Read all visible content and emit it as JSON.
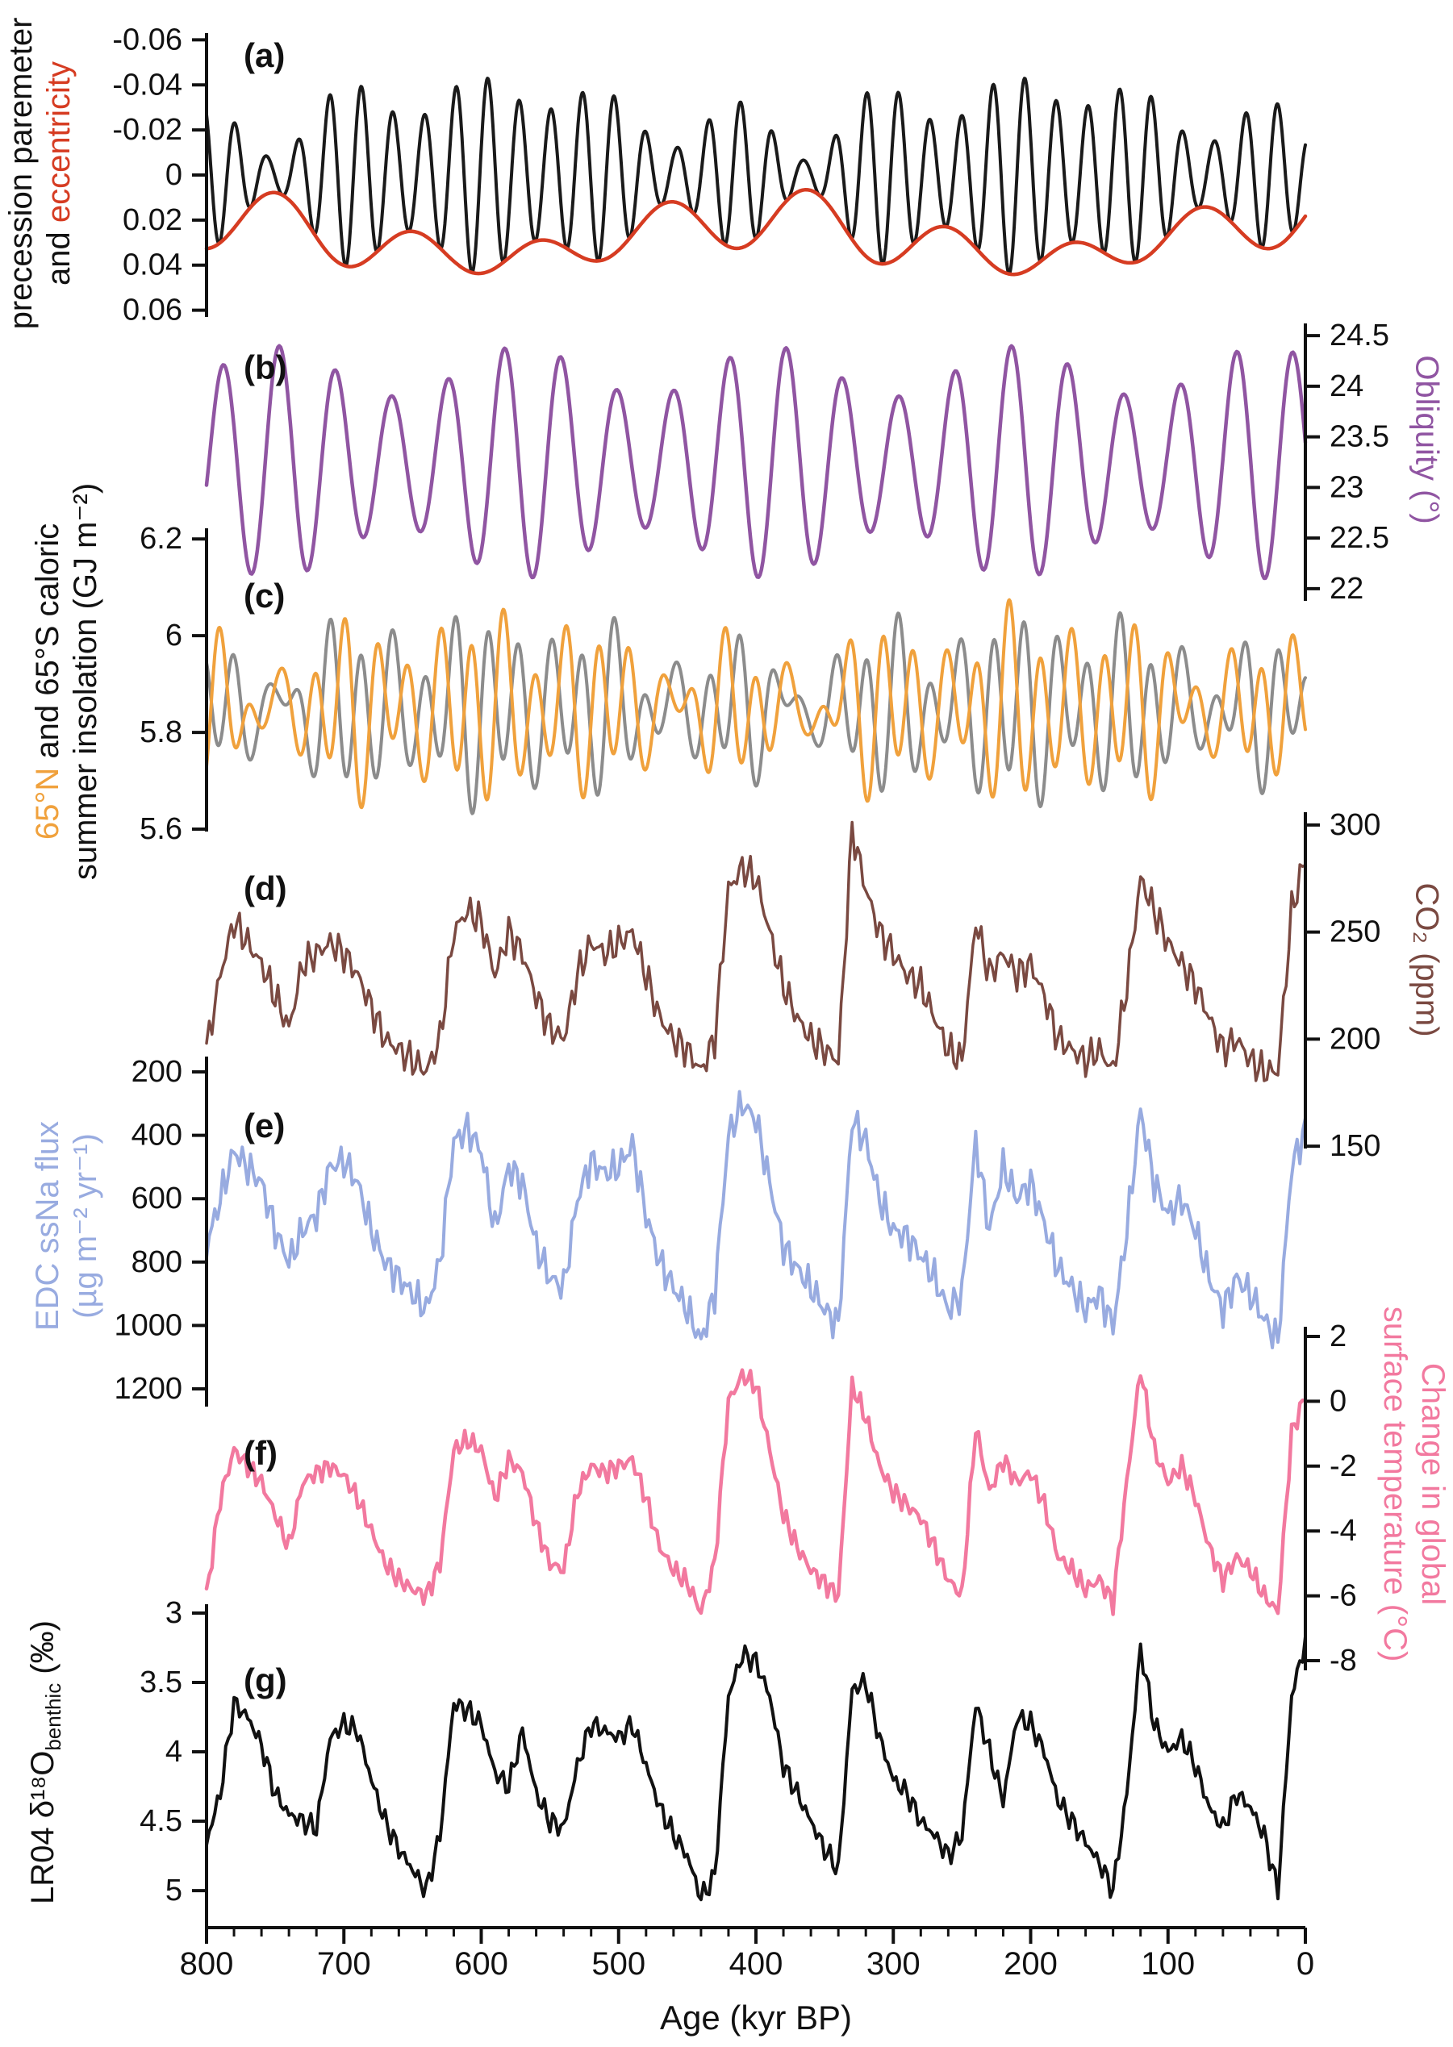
{
  "figure": {
    "description": "Seven stacked paleoclimate time series panels over the last 800 kyr"
  },
  "chart_data": {
    "type": "line",
    "x_axis": {
      "title": "Age (kyr BP)",
      "t_left": 800,
      "t_right": 0,
      "x_left": 256,
      "x_right": 1618,
      "y": 2390,
      "minor_step": 20,
      "ticks": [
        {
          "v": 800,
          "t": "800"
        },
        {
          "v": 700,
          "t": "700"
        },
        {
          "v": 600,
          "t": "600"
        },
        {
          "v": 500,
          "t": "500"
        },
        {
          "v": 400,
          "t": "400"
        },
        {
          "v": 300,
          "t": "300"
        },
        {
          "v": 200,
          "t": "200"
        },
        {
          "v": 100,
          "t": "100"
        },
        {
          "v": 0,
          "t": "0"
        }
      ]
    },
    "colors": {
      "black": "#111111",
      "eccentricity": "#d63c22",
      "obliquity": "#9055a2",
      "n65": "#f0a13c",
      "s65": "#8c8c8c",
      "co2": "#7a4941",
      "ssna": "#98abe0",
      "temp": "#f2799f"
    },
    "labels": {
      "a": {
        "line1": "precession paremeter",
        "line2_prefix": "and ",
        "line2_accent": "eccentricity"
      },
      "b": {
        "text": "Obliquity (°)"
      },
      "c": {
        "accent": "65°N",
        "line1_rest": " and 65°S caloric",
        "line2": "summer insolation (GJ m⁻²)"
      },
      "d": {
        "text": "CO₂ (ppm)"
      },
      "e": {
        "line1": "EDC ssNa flux",
        "line2": "(µg m⁻² yr⁻¹)"
      },
      "f": {
        "line1": "Change in global",
        "line2": "surface temperature (°C)"
      },
      "g": {
        "prefix": "LR04 δ¹⁸O",
        "sub": "benthic",
        "suffix": " (‰)"
      }
    },
    "eccentricity_model": {
      "offset": 0.028,
      "components": [
        {
          "amp": -0.009,
          "period": 400,
          "phase": 0
        },
        {
          "amp": 0.01,
          "period": 97,
          "phase": 120
        },
        {
          "amp": 0.004,
          "period": 128,
          "phase": 40
        }
      ]
    },
    "panels": [
      {
        "id": "a",
        "letter": "(a)",
        "side": "left",
        "y_top": 41,
        "y_bottom": 393,
        "v_top": -0.063,
        "v_bottom": 0.063,
        "ticks": [
          {
            "v": -0.06,
            "t": "-0.06"
          },
          {
            "v": -0.04,
            "t": "-0.04"
          },
          {
            "v": -0.02,
            "t": "-0.02"
          },
          {
            "v": 0,
            "t": "0"
          },
          {
            "v": 0.02,
            "t": "0.02"
          },
          {
            "v": 0.04,
            "t": "0.04"
          },
          {
            "v": 0.06,
            "t": "0.06"
          }
        ],
        "series": [
          {
            "name": "precession-parameter",
            "color": "#1a1a1a",
            "width": 4,
            "gen": {
              "type": "precession",
              "carrier_period": 23,
              "carrier_phase": 3,
              "step": 0.5
            }
          },
          {
            "name": "eccentricity",
            "color": "#d63c22",
            "width": 4.5,
            "gen": {
              "type": "eccentricity",
              "step": 2
            }
          }
        ]
      },
      {
        "id": "b",
        "letter": "(b)",
        "side": "right",
        "y_top": 401,
        "y_bottom": 745,
        "v_top": 24.62,
        "v_bottom": 21.88,
        "ticks": [
          {
            "v": 24.5,
            "t": "24.5"
          },
          {
            "v": 24,
            "t": "24"
          },
          {
            "v": 23.5,
            "t": "23.5"
          },
          {
            "v": 23,
            "t": "23"
          },
          {
            "v": 22.5,
            "t": "22.5"
          },
          {
            "v": 22,
            "t": "22"
          }
        ],
        "series": [
          {
            "name": "obliquity",
            "color": "#9055a2",
            "width": 4.5,
            "gen": {
              "type": "obliquity",
              "offset": 23.25,
              "am_base": 0.9,
              "am_amp": 0.25,
              "am_period": 180,
              "am_phase": 30,
              "period": 41,
              "phase": 9,
              "step": 1
            }
          }
        ]
      },
      {
        "id": "c",
        "letter": "(c)",
        "side": "left",
        "y_top": 655,
        "y_bottom": 1031,
        "v_top": 6.222,
        "v_bottom": 5.595,
        "ticks": [
          {
            "v": 6.2,
            "t": "6.2"
          },
          {
            "v": 6.0,
            "t": "6"
          },
          {
            "v": 5.8,
            "t": "5.8"
          },
          {
            "v": 5.6,
            "t": "5.6"
          }
        ],
        "series": [
          {
            "name": "insolation-65S",
            "color": "#8c8c8c",
            "width": 4,
            "gen": {
              "type": "insolation",
              "offset": 5.85,
              "env_coef": -4.0,
              "carrier_period": 23,
              "carrier_phase": 3,
              "obl_amp": 0.05,
              "obl_period": 41,
              "obl_phase": 9,
              "step": 0.5
            }
          },
          {
            "name": "insolation-65N",
            "color": "#f0a13c",
            "width": 4,
            "gen": {
              "type": "insolation",
              "offset": 5.85,
              "env_coef": 4.0,
              "carrier_period": 23,
              "carrier_phase": 3,
              "obl_amp": 0.05,
              "obl_period": 41,
              "obl_phase": 9,
              "step": 0.5
            }
          }
        ]
      },
      {
        "id": "d",
        "letter": "(d)",
        "side": "right",
        "y_top": 1007,
        "y_bottom": 1424,
        "v_top": 306.0,
        "v_bottom": 148.9,
        "ticks": [
          {
            "v": 300,
            "t": "300"
          },
          {
            "v": 250,
            "t": "250"
          },
          {
            "v": 200,
            "t": "200"
          },
          {
            "v": 150,
            "t": "150"
          }
        ],
        "series": [
          {
            "name": "co2",
            "color": "#7a4941",
            "width": 3.5,
            "gen": {
              "type": "sampled",
              "t_start": 800,
              "t_step": -10,
              "fine_step": 2,
              "jitter": [
                {
                  "amp": 5,
                  "period": 7.3,
                  "phase": 1
                },
                {
                  "amp": 4,
                  "period": 3.1,
                  "phase": 0
                }
              ],
              "values": [
                195,
                230,
                255,
                245,
                235,
                220,
                205,
                235,
                240,
                245,
                240,
                230,
                215,
                200,
                195,
                190,
                185,
                200,
                250,
                260,
                255,
                230,
                250,
                240,
                220,
                205,
                200,
                230,
                245,
                240,
                245,
                250,
                230,
                210,
                200,
                195,
                185,
                200,
                270,
                280,
                275,
                250,
                225,
                210,
                200,
                195,
                190,
                298,
                270,
                250,
                240,
                230,
                225,
                210,
                195,
                190,
                255,
                230,
                240,
                230,
                235,
                220,
                200,
                195,
                190,
                195,
                185,
                225,
                275,
                260,
                245,
                235,
                225,
                210,
                195,
                200,
                190,
                185,
                185,
                260,
                285
              ]
            }
          }
        ]
      },
      {
        "id": "e",
        "letter": "(e)",
        "side": "left",
        "y_top": 1310,
        "y_bottom": 1744,
        "v_top": 151.6,
        "v_bottom": 1256,
        "ticks": [
          {
            "v": 200,
            "t": "200"
          },
          {
            "v": 400,
            "t": "400"
          },
          {
            "v": 600,
            "t": "600"
          },
          {
            "v": 800,
            "t": "800"
          },
          {
            "v": 1000,
            "t": "1000"
          },
          {
            "v": 1200,
            "t": "1200"
          }
        ],
        "series": [
          {
            "name": "edc-ssna-flux",
            "color": "#98abe0",
            "width": 4,
            "gen": {
              "type": "sampled",
              "t_start": 800,
              "t_step": -10,
              "fine_step": 2,
              "jitter": [
                {
                  "amp": 35,
                  "period": 7.1,
                  "phase": 2
                },
                {
                  "amp": 28,
                  "period": 3.3,
                  "phase": 0
                }
              ],
              "values": [
                750,
                600,
                450,
                500,
                550,
                700,
                800,
                700,
                650,
                500,
                480,
                550,
                700,
                800,
                850,
                900,
                950,
                800,
                420,
                380,
                450,
                700,
                500,
                550,
                750,
                850,
                880,
                600,
                480,
                520,
                500,
                430,
                650,
                800,
                880,
                950,
                1050,
                900,
                400,
                300,
                350,
                550,
                750,
                820,
                880,
                950,
                1000,
                350,
                420,
                600,
                700,
                720,
                780,
                850,
                950,
                900,
                420,
                700,
                500,
                600,
                550,
                680,
                820,
                880,
                950,
                900,
                1000,
                700,
                320,
                550,
                650,
                600,
                700,
                850,
                950,
                850,
                900,
                980,
                1050,
                500,
                380
              ]
            }
          }
        ]
      },
      {
        "id": "f",
        "letter": "(f)",
        "side": "right",
        "y_top": 1645,
        "y_bottom": 2071,
        "v_top": 2.3,
        "v_bottom": -8.3,
        "ticks": [
          {
            "v": 2,
            "t": "2"
          },
          {
            "v": 0,
            "t": "0"
          },
          {
            "v": -2,
            "t": "-2"
          },
          {
            "v": -4,
            "t": "-4"
          },
          {
            "v": -6,
            "t": "-6"
          },
          {
            "v": -8,
            "t": "-8"
          }
        ],
        "series": [
          {
            "name": "global-temperature-change",
            "color": "#f2799f",
            "width": 4.5,
            "gen": {
              "type": "sampled",
              "t_start": 800,
              "t_step": -10,
              "fine_step": 2,
              "jitter": [
                {
                  "amp": 0.22,
                  "period": 6.7,
                  "phase": 1
                },
                {
                  "amp": 0.15,
                  "period": 3.2,
                  "phase": 0
                }
              ],
              "values": [
                -6,
                -3,
                -1.5,
                -2,
                -2.5,
                -3.5,
                -4.5,
                -2.5,
                -2.2,
                -2,
                -2.3,
                -3,
                -4,
                -5,
                -5.5,
                -5.8,
                -6,
                -5,
                -1.5,
                -1.2,
                -1.5,
                -3,
                -1.8,
                -2.2,
                -3.8,
                -5,
                -5.2,
                -2.8,
                -2,
                -2.2,
                -2,
                -1.8,
                -3,
                -4.5,
                -5.2,
                -5.6,
                -6.5,
                -5,
                0,
                0.8,
                0.5,
                -1.5,
                -3.5,
                -4.5,
                -5.2,
                -5.6,
                -6,
                0.5,
                -0.5,
                -2,
                -2.8,
                -3.2,
                -3.6,
                -4.5,
                -5.5,
                -6,
                -0.8,
                -2.8,
                -1.8,
                -2.5,
                -2.2,
                -3.2,
                -4.8,
                -5.2,
                -5.8,
                -5.5,
                -6.2,
                -2.5,
                1,
                -1.5,
                -2.5,
                -2,
                -3,
                -4.5,
                -5.5,
                -4.8,
                -5.2,
                -6,
                -6.5,
                -1,
                0.2
              ]
            }
          }
        ]
      },
      {
        "id": "g",
        "letter": "(g)",
        "side": "left",
        "y_top": 1989,
        "y_bottom": 2390,
        "v_top": 2.936,
        "v_bottom": 5.267,
        "ticks": [
          {
            "v": 3,
            "t": "3"
          },
          {
            "v": 3.5,
            "t": "3.5"
          },
          {
            "v": 4,
            "t": "4"
          },
          {
            "v": 4.5,
            "t": "4.5"
          },
          {
            "v": 5,
            "t": "5"
          }
        ],
        "series": [
          {
            "name": "lr04-d18o-benthic",
            "color": "#111111",
            "width": 4,
            "gen": {
              "type": "sampled",
              "t_start": 800,
              "t_step": -10,
              "fine_step": 2,
              "jitter": [
                {
                  "amp": 0.05,
                  "period": 6.1,
                  "phase": 0
                },
                {
                  "amp": 0.04,
                  "period": 2.7,
                  "phase": 1
                }
              ],
              "values": [
                4.65,
                4.3,
                3.65,
                3.75,
                3.95,
                4.3,
                4.45,
                4.5,
                4.55,
                3.9,
                3.8,
                3.85,
                4.2,
                4.5,
                4.7,
                4.85,
                5.0,
                4.6,
                3.65,
                3.7,
                3.8,
                4.15,
                4.25,
                3.85,
                4.3,
                4.5,
                4.55,
                4.1,
                3.8,
                3.85,
                3.9,
                3.8,
                4.1,
                4.4,
                4.6,
                4.75,
                5.05,
                4.9,
                3.6,
                3.3,
                3.35,
                3.6,
                4.1,
                4.3,
                4.5,
                4.7,
                4.85,
                3.55,
                3.5,
                3.9,
                4.2,
                4.3,
                4.5,
                4.6,
                4.75,
                4.6,
                3.65,
                4.0,
                4.35,
                3.75,
                3.8,
                4.0,
                4.35,
                4.5,
                4.65,
                4.8,
                5.0,
                4.3,
                3.25,
                3.8,
                4.0,
                3.9,
                4.1,
                4.4,
                4.55,
                4.3,
                4.4,
                4.6,
                5.0,
                3.6,
                3.2
              ]
            }
          }
        ]
      }
    ]
  }
}
